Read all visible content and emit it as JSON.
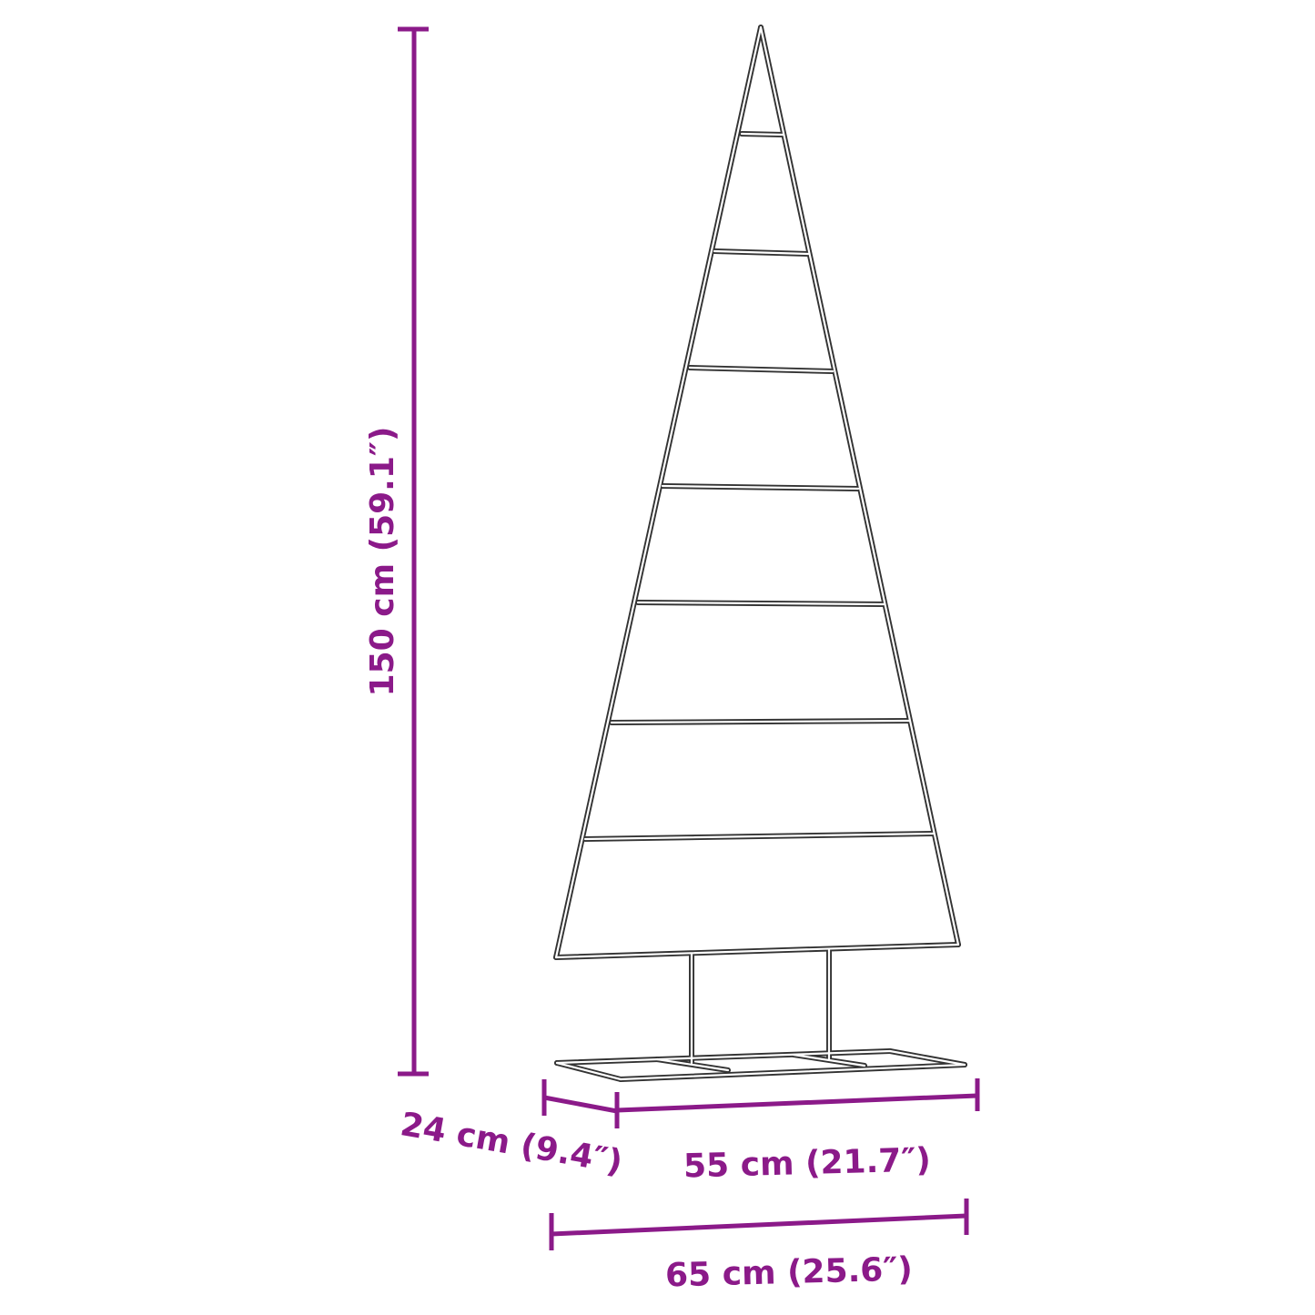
{
  "colors": {
    "dimension": "#8B1A89",
    "outline": "#333333",
    "background": "#ffffff"
  },
  "dimensions": {
    "height": "150 cm (59.1″)",
    "depth": "24 cm (9.4″)",
    "frame_width": "55 cm (21.7″)",
    "base_width": "65 cm (25.6″)"
  }
}
